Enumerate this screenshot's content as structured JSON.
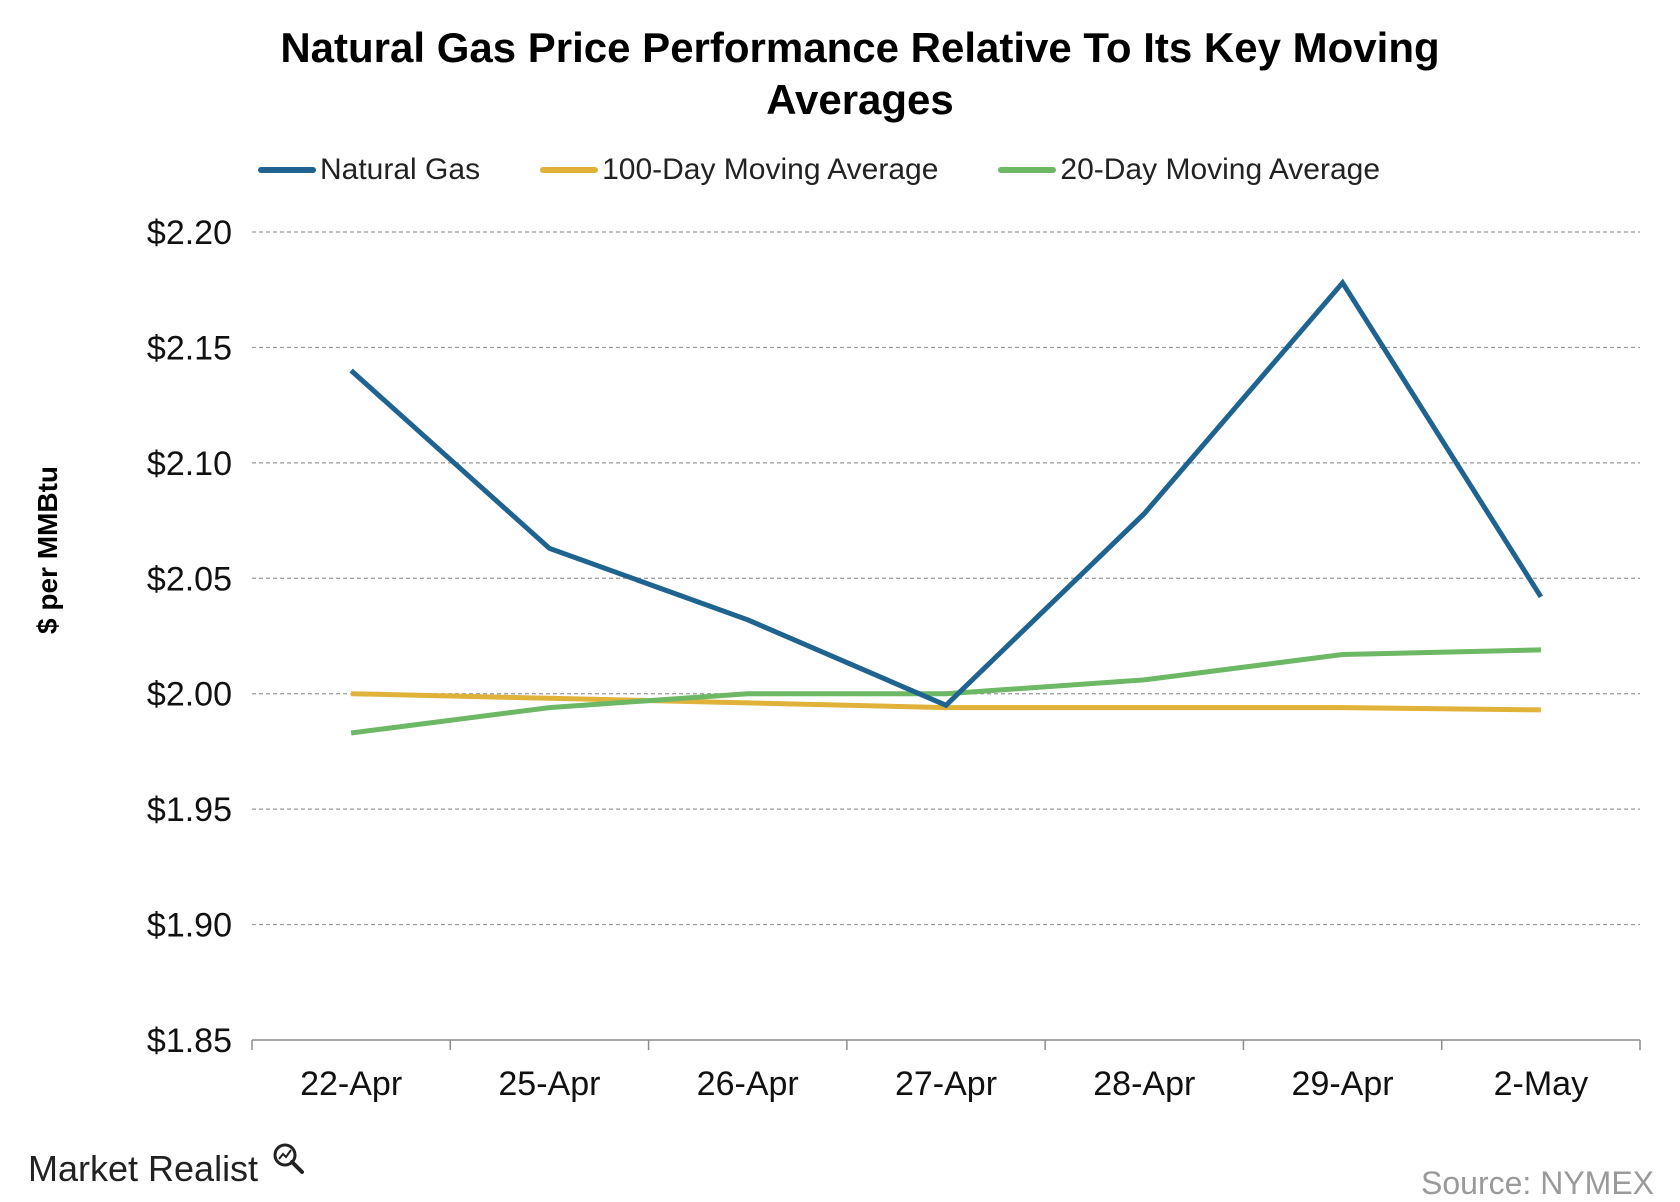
{
  "chart_data": {
    "type": "line",
    "title_lines": [
      "Natural Gas Price Performance Relative To Its Key Moving",
      "Averages"
    ],
    "ylabel": "$ per MMBtu",
    "xlabel": "",
    "categories": [
      "22-Apr",
      "25-Apr",
      "26-Apr",
      "27-Apr",
      "28-Apr",
      "29-Apr",
      "2-May"
    ],
    "ylim": [
      1.85,
      2.2
    ],
    "yticks": [
      2.2,
      2.15,
      2.1,
      2.05,
      2.0,
      1.95,
      1.9,
      1.85
    ],
    "ytick_labels": [
      "$2.20",
      "$2.15",
      "$2.10",
      "$2.05",
      "$2.00",
      "$1.95",
      "$1.90",
      "$1.85"
    ],
    "grid": true,
    "legend_position": "top",
    "series": [
      {
        "name": "Natural Gas",
        "color": "#1f6391",
        "values": [
          2.14,
          2.063,
          2.032,
          1.995,
          2.078,
          2.178,
          2.042
        ]
      },
      {
        "name": "100-Day Moving Average",
        "color": "#e0b23a",
        "values": [
          2.0,
          1.998,
          1.996,
          1.994,
          1.994,
          1.994,
          1.993
        ]
      },
      {
        "name": "20-Day Moving Average",
        "color": "#6db864",
        "values": [
          1.983,
          1.994,
          2.0,
          2.0,
          2.006,
          2.017,
          2.019
        ]
      }
    ]
  },
  "branding": {
    "logo_text": "Market Realist",
    "logo_icon": "magnifier-chart-icon"
  },
  "source": "Source: NYMEX"
}
